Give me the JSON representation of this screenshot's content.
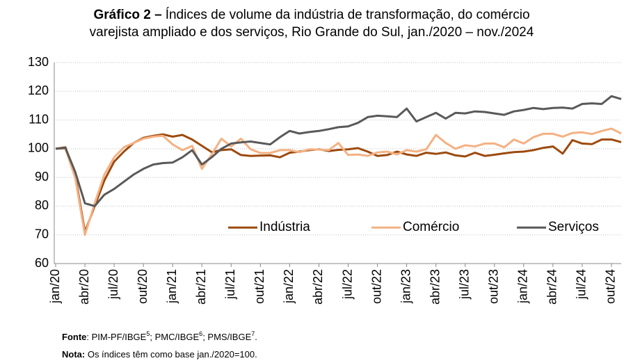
{
  "chart_data": {
    "type": "line",
    "title": {
      "number": "Gráfico 2 –",
      "lines": [
        "Índices de volume da indústria de transformação, do comércio",
        "varejista ampliado e dos serviços, Rio Grande do Sul, jan./2020 – nov./2024"
      ]
    },
    "categories": [
      "jan/20",
      null,
      null,
      "abr/20",
      null,
      null,
      "jul/20",
      null,
      null,
      "out/20",
      null,
      null,
      "jan/21",
      null,
      null,
      "abr/21",
      null,
      null,
      "jul/21",
      null,
      null,
      "out/21",
      null,
      null,
      "jan/22",
      null,
      null,
      "abr/22",
      null,
      null,
      "jul/22",
      null,
      null,
      "out/22",
      null,
      null,
      "jan/23",
      null,
      null,
      "abr/23",
      null,
      null,
      "jul/23",
      null,
      null,
      "out/23",
      null,
      null,
      "jan/24",
      null,
      null,
      "abr/24",
      null,
      null,
      "jul/24",
      null,
      null,
      "out/24",
      null
    ],
    "series": [
      {
        "name": "Indústria",
        "color": "#9c4a0e",
        "values": [
          100,
          100.5,
          91,
          71,
          80,
          89,
          95.5,
          99,
          102,
          103.8,
          104.5,
          105,
          104.2,
          104.8,
          103.2,
          101,
          98.8,
          99.5,
          99.8,
          97.8,
          97.5,
          97.6,
          97.7,
          97,
          98.6,
          99,
          99.5,
          99.8,
          99.2,
          99.6,
          99.8,
          100.2,
          99,
          97.5,
          97.8,
          99,
          98,
          97.5,
          98.6,
          98.2,
          98.7,
          97.7,
          97.3,
          98.6,
          97.5,
          97.9,
          98.4,
          98.8,
          99,
          99.5,
          100.3,
          100.8,
          98.3,
          103,
          101.8,
          101.6,
          103.2,
          103.2,
          102.3
        ]
      },
      {
        "name": "Comércio",
        "color": "#f4b183",
        "values": [
          100,
          100,
          90,
          70,
          81,
          91,
          97,
          100.5,
          102,
          103.5,
          104.2,
          104.5,
          101.5,
          99.5,
          101,
          93,
          98,
          103.5,
          100.8,
          103.5,
          99.8,
          98.5,
          98.5,
          99.5,
          99.5,
          98.8,
          99.8,
          99.7,
          99.5,
          102,
          97.8,
          98,
          97.5,
          98.7,
          99,
          98,
          99.5,
          99,
          99.8,
          104.8,
          102,
          100,
          101.2,
          100.8,
          101.8,
          101.8,
          100.5,
          103.2,
          101.8,
          104,
          105.2,
          105.2,
          104.2,
          105.5,
          105.7,
          105.1,
          106.2,
          107,
          105.3
        ]
      },
      {
        "name": "Serviços",
        "color": "#595959",
        "values": [
          100,
          100.3,
          92,
          81,
          80,
          84,
          86,
          88.5,
          91,
          93,
          94.5,
          95,
          95.2,
          97,
          99.5,
          94.5,
          97,
          100,
          101.8,
          102.2,
          102.5,
          102,
          101.5,
          104,
          106.2,
          105.3,
          105.8,
          106.2,
          106.8,
          107.5,
          107.8,
          109,
          111,
          111.5,
          111.3,
          111,
          114,
          109.5,
          111,
          112.5,
          110.5,
          112.5,
          112.3,
          113,
          112.8,
          112.3,
          111.8,
          113,
          113.5,
          114.2,
          113.8,
          114.2,
          114.3,
          114,
          115.6,
          115.8,
          115.6,
          118.3,
          117.3
        ]
      }
    ],
    "ylim": [
      60,
      130
    ],
    "yticks": [
      60,
      70,
      80,
      90,
      100,
      110,
      120,
      130
    ],
    "grid": true,
    "legend_position": "lower right",
    "source": [
      "Fonte",
      ": PIM-PF/IBGE",
      "5",
      "; PMC/IBGE",
      "6",
      "; PMS/IBGE",
      "7",
      "."
    ],
    "note": [
      "Nota:",
      " Os índices têm como base jan./2020=100."
    ]
  }
}
